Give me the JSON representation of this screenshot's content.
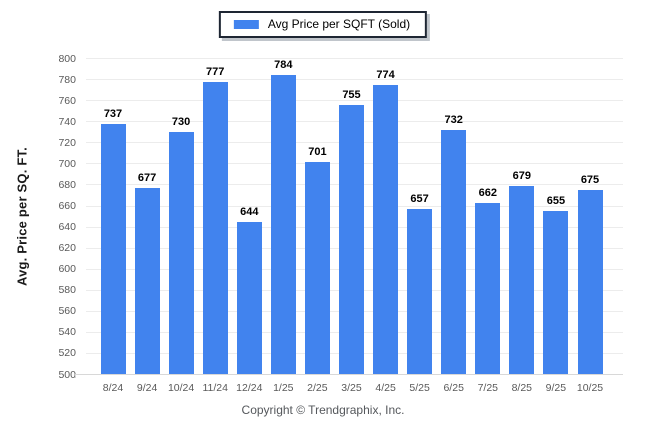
{
  "legend": {
    "label": "Avg Price per SQFT (Sold)"
  },
  "y_axis": {
    "title": "Avg. Price per SQ. FT."
  },
  "footer": {
    "copyright": "Copyright © Trendgraphix, Inc."
  },
  "colors": {
    "bar": "#4183EE",
    "grid": "#ECECEC",
    "baseline": "#D8D8D8",
    "tick_label": "#595959",
    "value_label": "#000000",
    "legend_border": "#1E2633",
    "copyright": "#55585C",
    "background_edge": "#E0E7F1"
  },
  "chart_data": {
    "type": "bar",
    "title": "",
    "legend_entries": [
      "Avg Price per SQFT (Sold)"
    ],
    "legend_position": "top-center",
    "categories": [
      "8/24",
      "9/24",
      "10/24",
      "11/24",
      "12/24",
      "1/25",
      "2/25",
      "3/25",
      "4/25",
      "5/25",
      "6/25",
      "7/25",
      "8/25",
      "9/25",
      "10/25"
    ],
    "values": [
      737,
      677,
      730,
      777,
      644,
      784,
      701,
      755,
      774,
      657,
      732,
      662,
      679,
      655,
      675
    ],
    "xlabel": "",
    "ylabel": "Avg. Price per SQ. FT.",
    "ylim": [
      500,
      800
    ],
    "ytick_step": 20,
    "grid": true,
    "value_labels": true
  }
}
